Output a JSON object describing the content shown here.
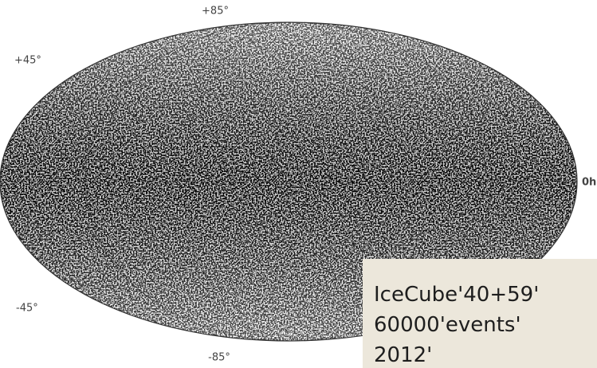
{
  "labels": {
    "top": "+85°",
    "upper_left": "+45°",
    "right": "0h",
    "lower_left": "-45°",
    "bottom": "-85°"
  },
  "caption": {
    "lines": [
      "IceCube'40+59'",
      "60000'events'",
      "2012'"
    ]
  }
}
